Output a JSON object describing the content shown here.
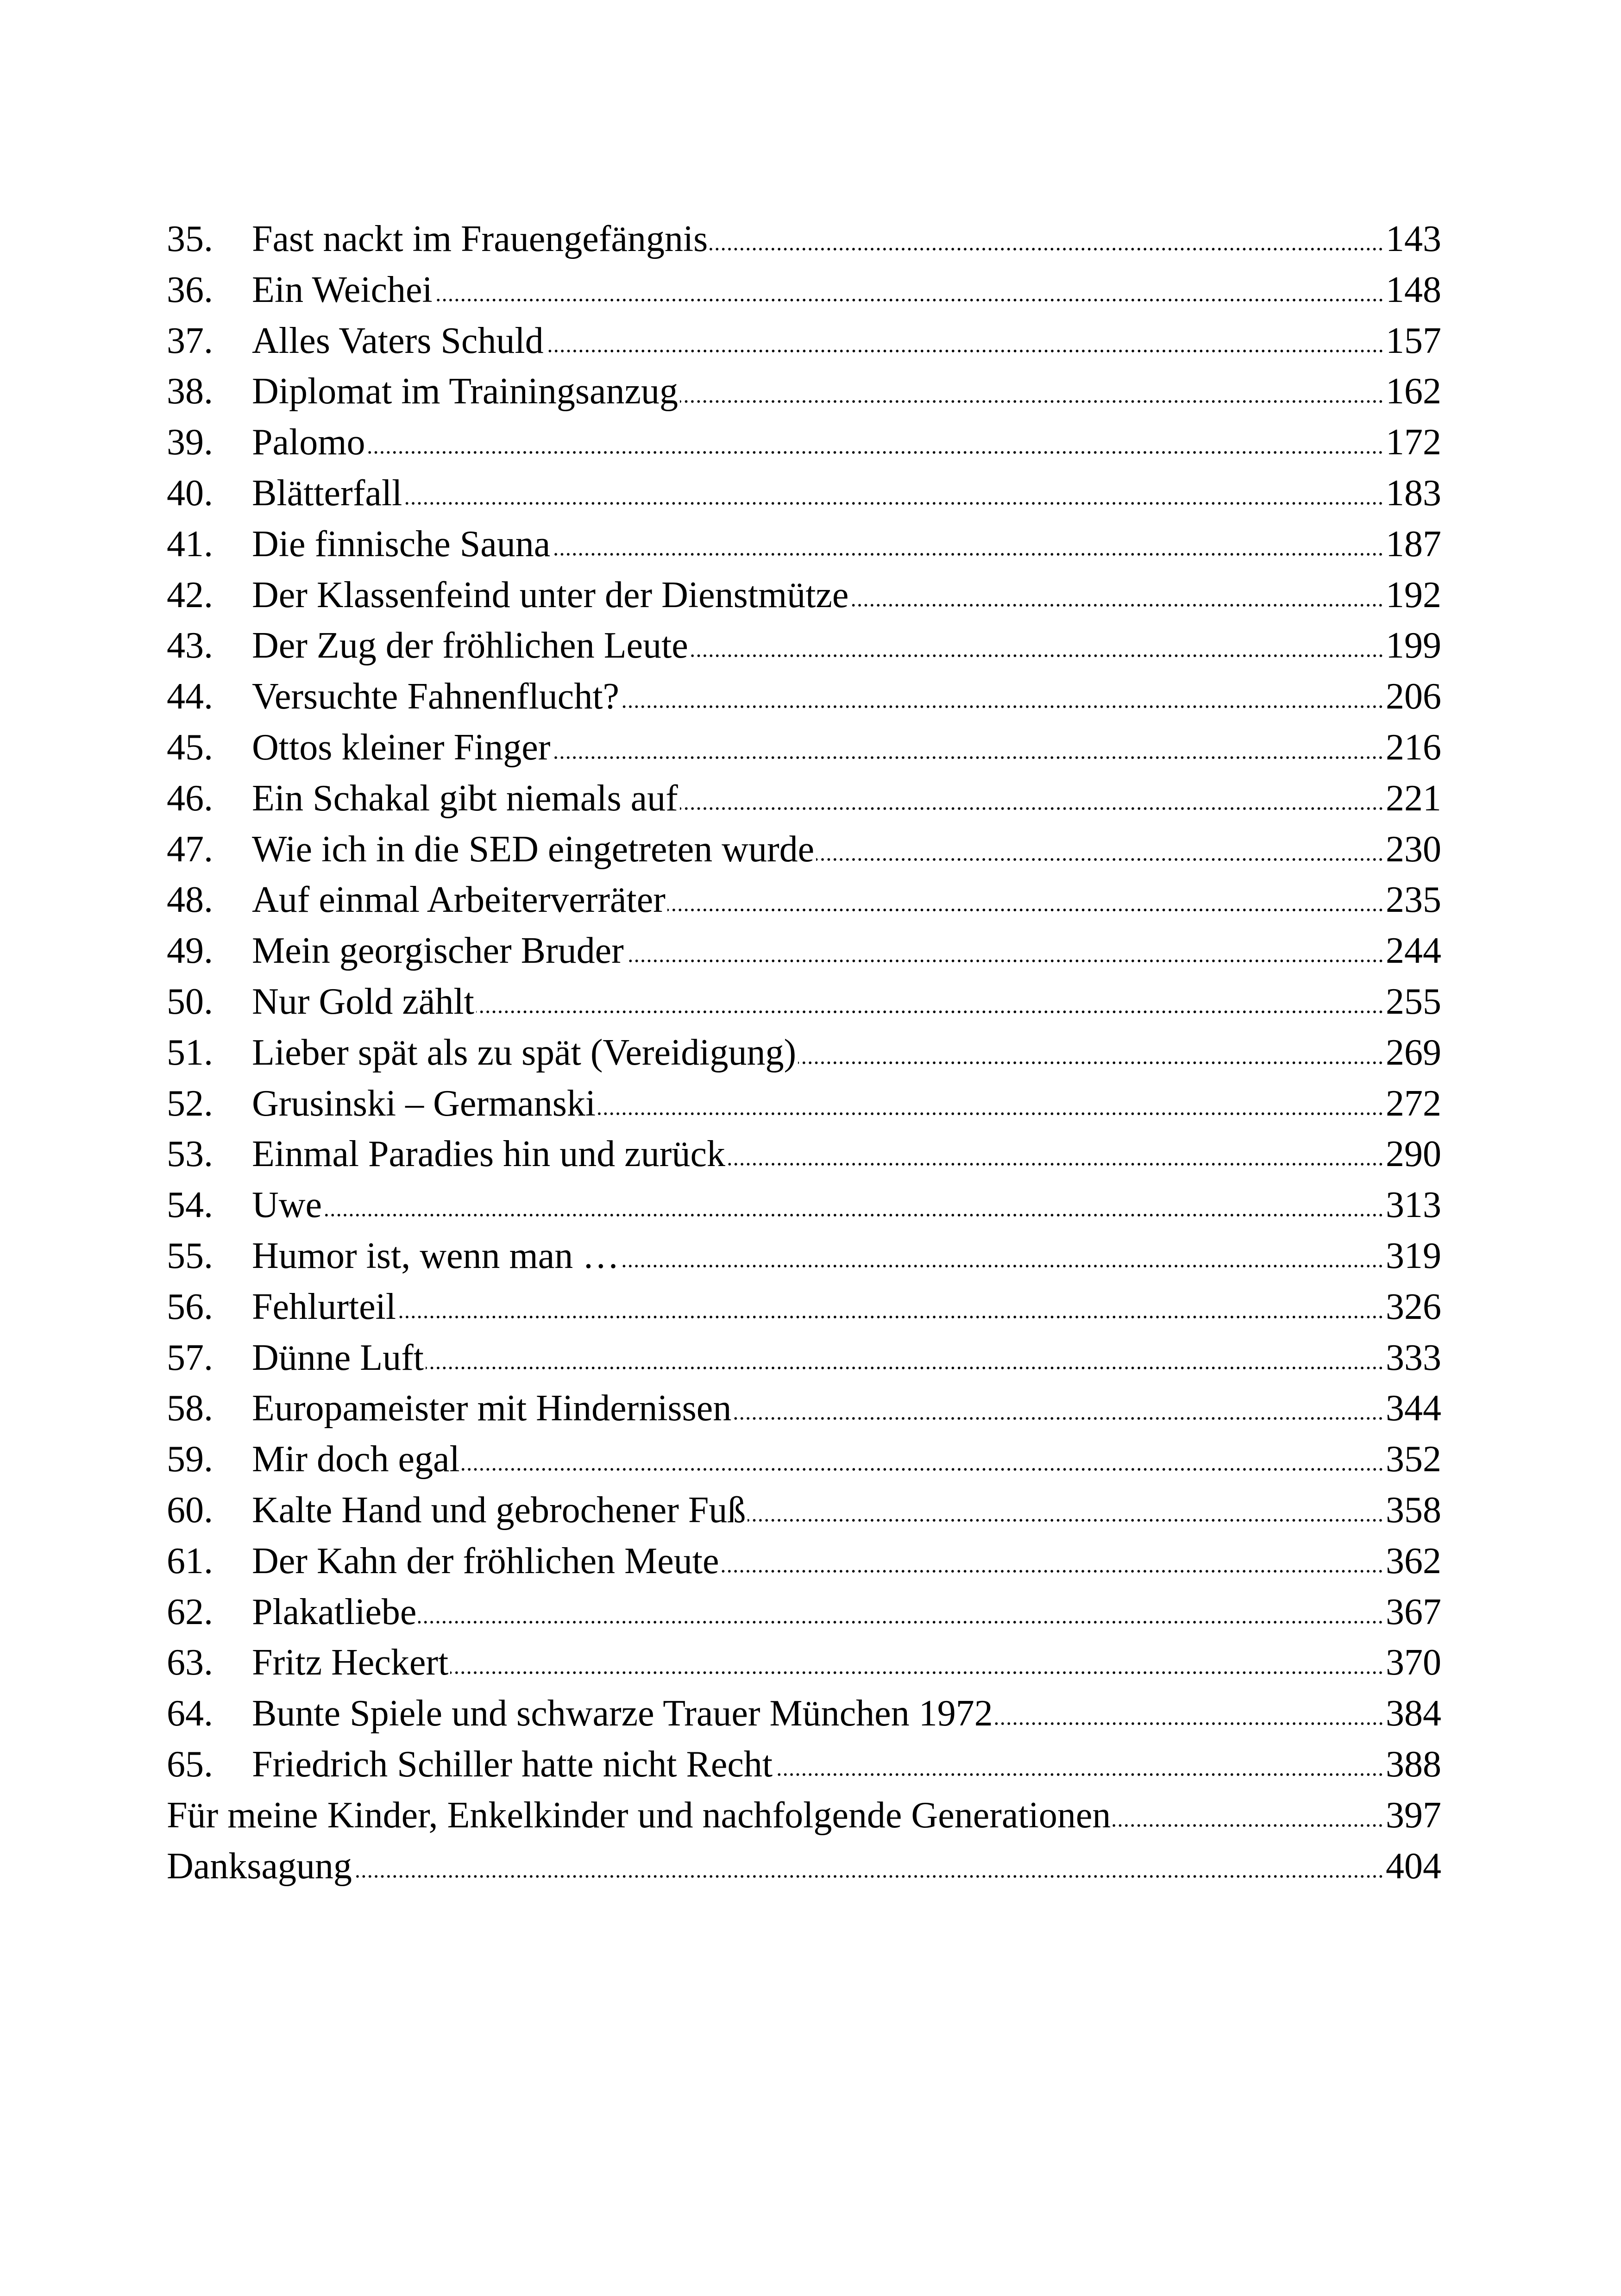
{
  "toc": {
    "entries": [
      {
        "num": "35.",
        "title": "Fast nackt im Frauengefängnis",
        "page": "143"
      },
      {
        "num": "36.",
        "title": "Ein Weichei",
        "page": "148"
      },
      {
        "num": "37.",
        "title": "Alles Vaters Schuld",
        "page": "157"
      },
      {
        "num": "38.",
        "title": "Diplomat im Trainingsanzug",
        "page": "162"
      },
      {
        "num": "39.",
        "title": "Palomo",
        "page": "172"
      },
      {
        "num": "40.",
        "title": "Blätterfall",
        "page": "183"
      },
      {
        "num": "41.",
        "title": "Die finnische Sauna",
        "page": "187"
      },
      {
        "num": "42.",
        "title": "Der Klassenfeind unter der Dienstmütze",
        "page": "192"
      },
      {
        "num": "43.",
        "title": "Der Zug der fröhlichen Leute",
        "page": "199"
      },
      {
        "num": "44.",
        "title": "Versuchte Fahnenflucht?",
        "page": "206"
      },
      {
        "num": "45.",
        "title": "Ottos kleiner Finger",
        "page": "216"
      },
      {
        "num": "46.",
        "title": "Ein Schakal gibt niemals auf",
        "page": "221"
      },
      {
        "num": "47.",
        "title": "Wie ich in die SED eingetreten wurde",
        "page": "230"
      },
      {
        "num": "48.",
        "title": "Auf einmal Arbeiterverräter",
        "page": "235"
      },
      {
        "num": "49.",
        "title": "Mein georgischer Bruder",
        "page": "244"
      },
      {
        "num": "50.",
        "title": "Nur Gold zählt",
        "page": "255"
      },
      {
        "num": "51.",
        "title": "Lieber spät als zu spät  (Vereidigung)",
        "page": "269"
      },
      {
        "num": "52.",
        "title": "Grusinski – Germanski",
        "page": "272"
      },
      {
        "num": "53.",
        "title": "Einmal Paradies hin und zurück",
        "page": "290"
      },
      {
        "num": "54.",
        "title": "Uwe",
        "page": "313"
      },
      {
        "num": "55.",
        "title": "Humor ist, wenn man …",
        "page": "319"
      },
      {
        "num": "56.",
        "title": "Fehlurteil",
        "page": "326"
      },
      {
        "num": "57.",
        "title": "Dünne Luft",
        "page": "333"
      },
      {
        "num": "58.",
        "title": "Europameister mit Hindernissen",
        "page": "344"
      },
      {
        "num": "59.",
        "title": "Mir doch egal",
        "page": "352"
      },
      {
        "num": "60.",
        "title": "Kalte Hand und gebrochener Fuß",
        "page": "358"
      },
      {
        "num": "61.",
        "title": "Der Kahn der fröhlichen Meute",
        "page": "362"
      },
      {
        "num": "62.",
        "title": "Plakatliebe",
        "page": "367"
      },
      {
        "num": "63.",
        "title": "Fritz Heckert",
        "page": "370"
      },
      {
        "num": "64.",
        "title": "Bunte Spiele und schwarze Trauer München 1972",
        "page": "384"
      },
      {
        "num": "65.",
        "title": "Friedrich Schiller hatte nicht Recht",
        "page": "388"
      }
    ],
    "extras": [
      {
        "title": "Für meine Kinder, Enkelkinder und nachfolgende Generationen",
        "page": "397"
      },
      {
        "title": "Danksagung",
        "page": "404"
      }
    ]
  }
}
